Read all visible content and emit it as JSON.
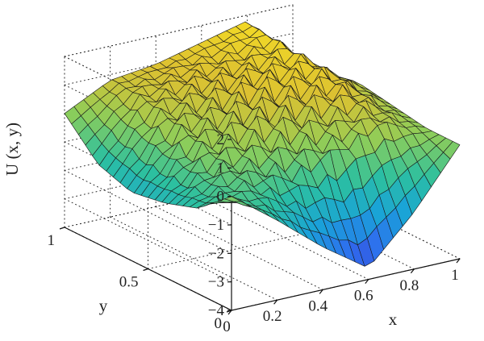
{
  "chart_data": {
    "type": "surface",
    "title": "",
    "xlabel": "x",
    "ylabel": "y",
    "zlabel": "U (x, y)",
    "xlim": [
      0,
      1
    ],
    "ylim": [
      0,
      1
    ],
    "zlim": [
      -4,
      2
    ],
    "xticks": [
      "0",
      "0.2",
      "0.4",
      "0.6",
      "0.8",
      "1"
    ],
    "yticks": [
      "0",
      "0.5",
      "1"
    ],
    "zticks": [
      "2",
      "1",
      "0",
      "−1",
      "−2",
      "−3",
      "−4"
    ],
    "grid": true,
    "colormap": "parula",
    "colormap_colors": [
      "#3e26a8",
      "#2f6cf0",
      "#19a3d8",
      "#2cc0a0",
      "#8ccd5a",
      "#dcc131",
      "#f9e023"
    ],
    "edge_color": "#1a1a1a",
    "surface": {
      "x": [
        0,
        0.2,
        0.4,
        0.6,
        0.8,
        1
      ],
      "y": [
        0,
        0.2,
        0.4,
        0.6,
        0.8,
        1
      ],
      "description_values_z": [
        [
          0.0,
          -1.2,
          -2.5,
          -3.6,
          -2.0,
          0.0
        ],
        [
          -1.0,
          -0.6,
          -0.8,
          -0.3,
          0.4,
          0.0
        ],
        [
          -1.4,
          -0.2,
          0.4,
          0.6,
          1.0,
          0.2
        ],
        [
          -1.6,
          0.2,
          0.6,
          1.1,
          1.3,
          0.4
        ],
        [
          -1.2,
          0.6,
          0.9,
          1.0,
          1.6,
          0.0
        ],
        [
          0.0,
          0.8,
          1.0,
          1.4,
          1.8,
          0.0
        ]
      ]
    }
  }
}
